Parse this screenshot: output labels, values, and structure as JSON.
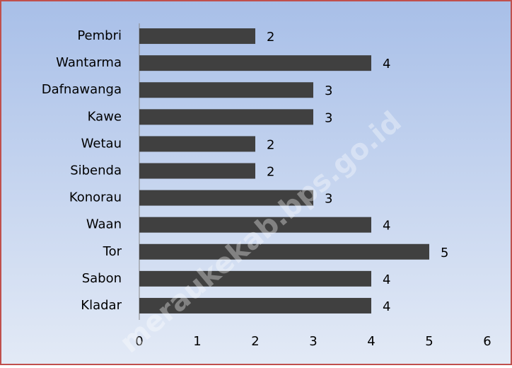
{
  "chart_data": {
    "type": "bar",
    "orientation": "horizontal",
    "categories": [
      "Pembri",
      "Wantarma",
      "Dafnawanga",
      "Kawe",
      "Wetau",
      "Sibenda",
      "Konorau",
      "Waan",
      "Tor",
      "Sabon",
      "Kladar"
    ],
    "values": [
      2,
      4,
      3,
      3,
      2,
      2,
      3,
      4,
      5,
      4,
      4
    ],
    "color": "#404040",
    "xlim": [
      0,
      6
    ],
    "xticks": [
      0,
      1,
      2,
      3,
      4,
      5,
      6
    ],
    "grid": false,
    "data_labels": true,
    "watermark": "meraukekab.bps.go.id"
  }
}
